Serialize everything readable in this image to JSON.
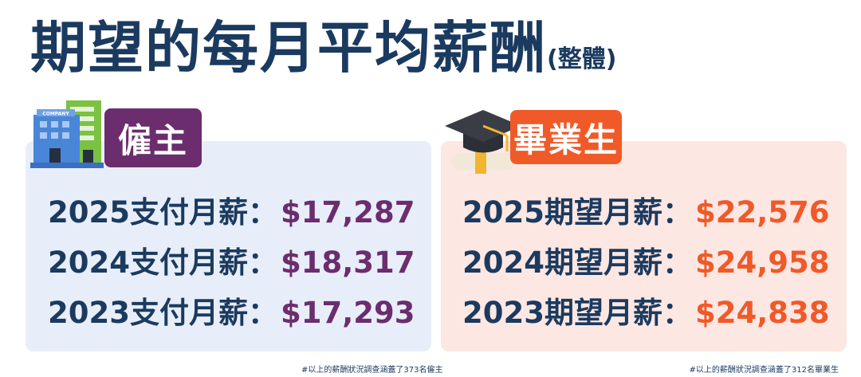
{
  "title": {
    "main": "期望的每月平均薪酬",
    "sub": "(整體)"
  },
  "employer": {
    "label": "僱主",
    "icon": "company-building-icon",
    "icon_text": "COMPANY",
    "color": "#6b2d6e",
    "rows": [
      {
        "label": "2025支付月薪：",
        "value": "$17,287"
      },
      {
        "label": "2024支付月薪：",
        "value": "$18,317"
      },
      {
        "label": "2023支付月薪：",
        "value": "$17,293"
      }
    ],
    "note": "#以上的薪酬狀況調查涵蓋了373名僱主"
  },
  "graduate": {
    "label": "畢業生",
    "icon": "graduation-cap-icon",
    "color": "#f05a28",
    "rows": [
      {
        "label": "2025期望月薪：",
        "value": "$22,576"
      },
      {
        "label": "2024期望月薪：",
        "value": "$24,958"
      },
      {
        "label": "2023期望月薪：",
        "value": "$24,838"
      }
    ],
    "note": "#以上的薪酬狀況調查涵蓋了312名畢業生"
  }
}
